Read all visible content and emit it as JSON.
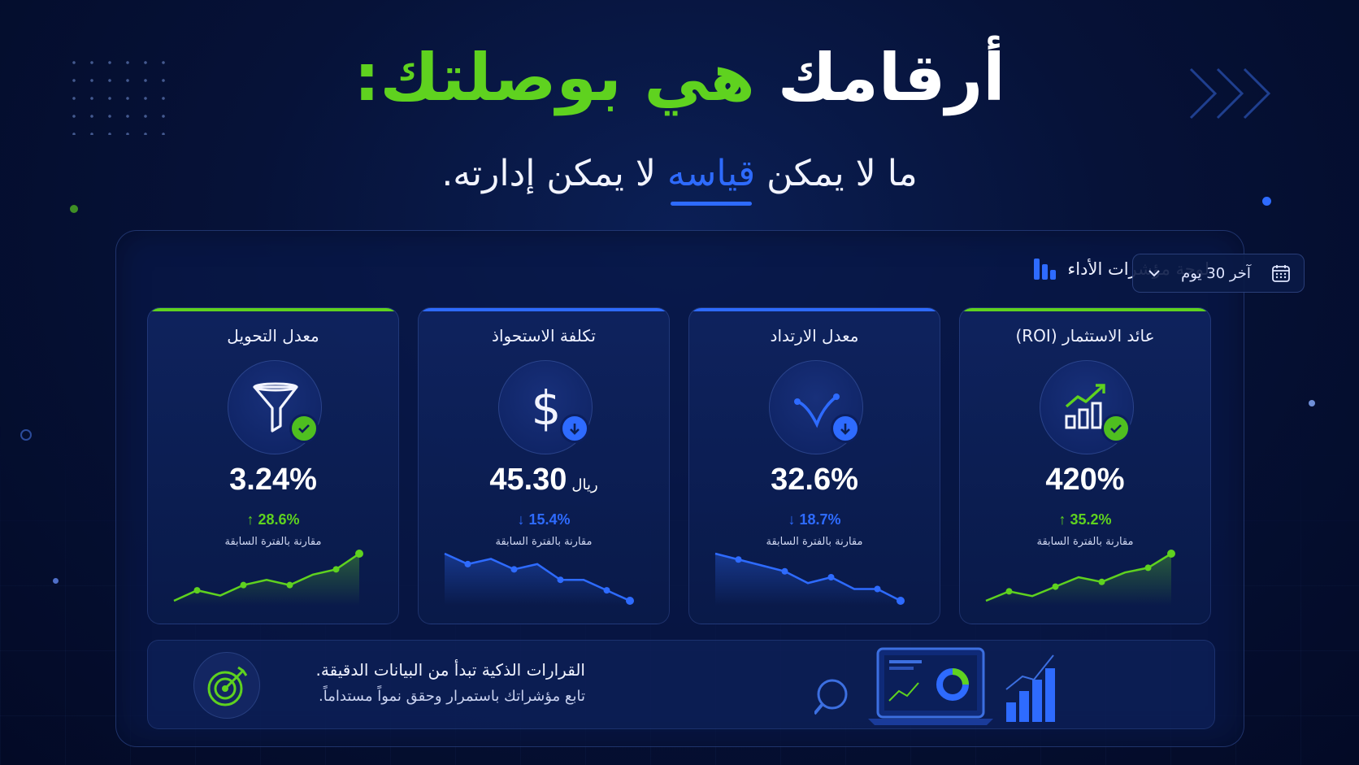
{
  "hero": {
    "title_part1": "أرقامك",
    "title_part2": "هي بوصلتك:",
    "subtitle_part1": "ما لا يمكن",
    "subtitle_highlight": "قياسه",
    "subtitle_part2": "لا يمكن إدارته."
  },
  "dashboard": {
    "title": "لوحة مؤشرات الأداء",
    "period": "آخر 30 يوم",
    "icons": {
      "title": "bar-chart-icon",
      "period": "calendar-icon",
      "dropdown": "chevron-down-icon"
    }
  },
  "colors": {
    "green": "#5fd21f",
    "blue": "#2e6bff",
    "background": "#061238"
  },
  "kpis": [
    {
      "title": "معدل التحويل",
      "icon": "funnel-icon",
      "badge": "check-icon",
      "value": "3.24%",
      "unit": "",
      "delta": "↑ 28.6%",
      "compare": "مقارنة بالفترة السابقة",
      "trend": "up",
      "accent": "#5fd21f",
      "sparkline": [
        3,
        5,
        4,
        6,
        7,
        6,
        8,
        9,
        12
      ]
    },
    {
      "title": "تكلفة الاستحواذ",
      "icon": "dollar-icon",
      "badge": "arrow-down-icon",
      "value": "45.30",
      "unit": "ريال",
      "delta": "↓ 15.4%",
      "compare": "مقارنة بالفترة السابقة",
      "trend": "down",
      "accent": "#2e6bff",
      "sparkline": [
        11,
        9,
        10,
        8,
        9,
        6,
        6,
        4,
        2
      ]
    },
    {
      "title": "معدل الارتداد",
      "icon": "bounce-icon",
      "badge": "arrow-down-icon",
      "value": "32.6%",
      "unit": "",
      "delta": "↓ 18.7%",
      "compare": "مقارنة بالفترة السابقة",
      "trend": "down",
      "accent": "#2e6bff",
      "sparkline": [
        10,
        9,
        8,
        7,
        5,
        6,
        4,
        4,
        2
      ]
    },
    {
      "title": "عائد الاستثمار (ROI)",
      "icon": "growth-chart-icon",
      "badge": "check-icon",
      "value": "420%",
      "unit": "",
      "delta": "↑ 35.2%",
      "compare": "مقارنة بالفترة السابقة",
      "trend": "up",
      "accent": "#5fd21f",
      "sparkline": [
        2,
        4,
        3,
        5,
        7,
        6,
        8,
        9,
        12
      ]
    }
  ],
  "footer": {
    "line1": "القرارات الذكية تبدأ من البيانات الدقيقة.",
    "line2": "تابع مؤشراتك باستمرار وحقق نمواً مستداماً.",
    "icon": "target-icon"
  }
}
